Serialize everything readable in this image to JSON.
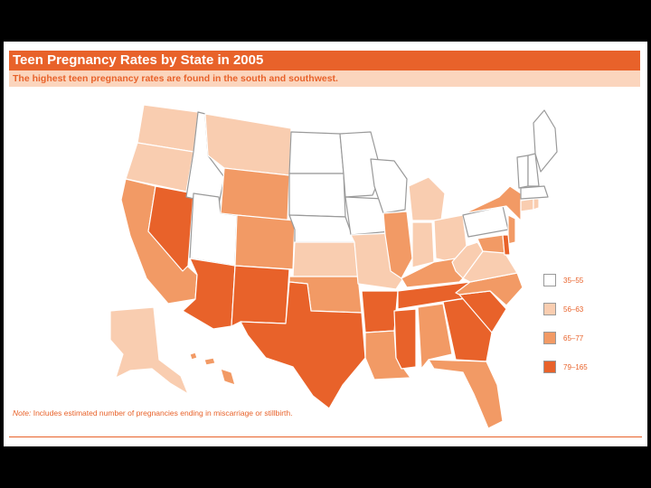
{
  "title": "Teen Pregnancy Rates by State in 2005",
  "subtitle": "The highest teen pregnancy rates are found in the south and southwest.",
  "note_label": "Note:",
  "note_text": "Includes estimated number of pregnancies ending in miscarriage or stillbirth.",
  "colors": {
    "band1": "#ffffff",
    "band2": "#f9cdb0",
    "band3": "#f29a65",
    "band4": "#e8622a",
    "accent": "#e8622a"
  },
  "legend": [
    {
      "label": "35–55",
      "band": "band1"
    },
    {
      "label": "56–63",
      "band": "band2"
    },
    {
      "label": "65–77",
      "band": "band3"
    },
    {
      "label": "79–165",
      "band": "band4"
    }
  ],
  "states": {
    "WA": "band2",
    "OR": "band2",
    "CA": "band3",
    "NV": "band4",
    "ID": "band1",
    "MT": "band2",
    "WY": "band3",
    "UT": "band1",
    "AZ": "band4",
    "CO": "band3",
    "NM": "band4",
    "ND": "band1",
    "SD": "band1",
    "NE": "band1",
    "KS": "band2",
    "OK": "band3",
    "TX": "band4",
    "MN": "band1",
    "IA": "band1",
    "MO": "band2",
    "AR": "band4",
    "LA": "band3",
    "WI": "band1",
    "IL": "band3",
    "MS": "band4",
    "MI": "band2",
    "IN": "band2",
    "KY": "band3",
    "TN": "band4",
    "AL": "band3",
    "OH": "band2",
    "WV": "band2",
    "VA": "band2",
    "NC": "band3",
    "SC": "band4",
    "GA": "band4",
    "FL": "band3",
    "PA": "band1",
    "NY": "band3",
    "NJ": "band3",
    "DE": "band4",
    "MD": "band3",
    "CT": "band2",
    "RI": "band2",
    "MA": "band1",
    "VT": "band1",
    "NH": "band1",
    "ME": "band1",
    "AK": "band2",
    "HI": "band3"
  }
}
